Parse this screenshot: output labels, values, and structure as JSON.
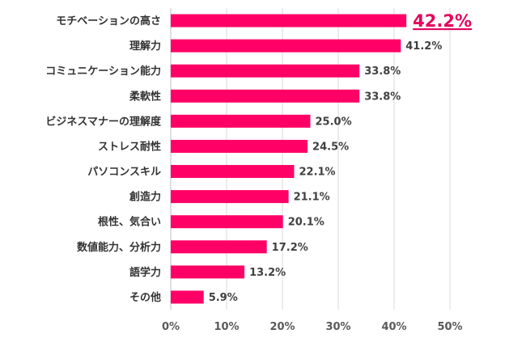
{
  "chart_data": {
    "type": "bar",
    "orientation": "horizontal",
    "categories": [
      "モチベーションの高さ",
      "理解力",
      "コミュニケーション能力",
      "柔軟性",
      "ビジネスマナーの理解度",
      "ストレス耐性",
      "パソコンスキル",
      "創造力",
      "根性、気合い",
      "数値能力、分析力",
      "語学力",
      "その他"
    ],
    "values": [
      42.2,
      41.2,
      33.8,
      33.8,
      25.0,
      24.5,
      22.1,
      21.1,
      20.1,
      17.2,
      13.2,
      5.9
    ],
    "value_labels": [
      "42.2%",
      "41.2%",
      "33.8%",
      "33.8%",
      "25.0%",
      "24.5%",
      "22.1%",
      "21.1%",
      "20.1%",
      "17.2%",
      "13.2%",
      "5.9%"
    ],
    "highlight_index": 0,
    "xlim": [
      0,
      50
    ],
    "xticks": [
      0,
      10,
      20,
      30,
      40,
      50
    ],
    "xtick_labels": [
      "0%",
      "10%",
      "20%",
      "30%",
      "40%",
      "50%"
    ],
    "grid": "vertical",
    "colors": {
      "bar": "#ff0066",
      "highlight_label": "#e6005c"
    }
  }
}
